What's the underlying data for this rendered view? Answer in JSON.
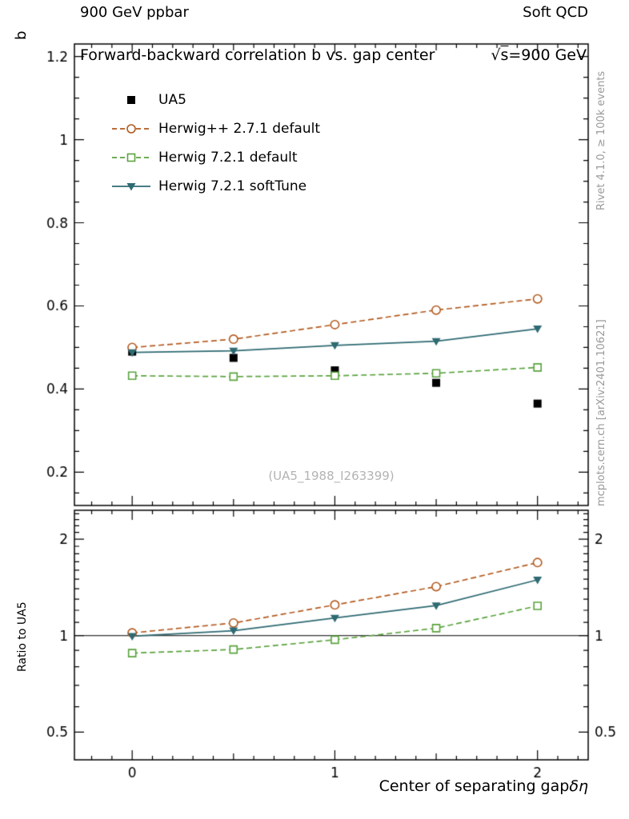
{
  "header": {
    "left": "900 GeV ppbar",
    "right": "Soft QCD"
  },
  "title": {
    "text": "Forward-backward correlation b  vs. gap center",
    "sqrt": "√",
    "s": "s",
    "energy": "=900 GeV"
  },
  "watermark": "(UA5_1988_I263399)",
  "side_texts": {
    "rivet": "Rivet 4.1.0, ≥ 100k events",
    "mcplots": "mcplots.cern.ch [arXiv:2401.10621]"
  },
  "axes": {
    "y_main_label": "b",
    "y_ratio_label": "Ratio to UA5",
    "x_label": "Center of separating gap",
    "x_label_symbol": "δη"
  },
  "chart_data": {
    "type": "line",
    "x": [
      0,
      0.5,
      1,
      1.5,
      2
    ],
    "xlim": [
      -0.285,
      2.25
    ],
    "xticks": [
      0,
      1,
      2
    ],
    "main_panel": {
      "ylabel": "b",
      "ylim": [
        0.12,
        1.23
      ],
      "yticks": [
        0.2,
        0.4,
        0.6,
        0.8,
        1,
        1.2
      ],
      "scale": "linear"
    },
    "ratio_panel": {
      "ylabel": "Ratio to UA5",
      "ylim": [
        0.41,
        2.46
      ],
      "yticks": [
        0.5,
        1,
        2
      ],
      "scale": "log",
      "reference_line": 1
    },
    "legend_position": "top-left",
    "series": [
      {
        "name": "UA5",
        "color": "#000000",
        "line": "none",
        "marker": "square-filled",
        "values": [
          0.49,
          0.475,
          0.445,
          0.415,
          0.365
        ],
        "ratio": null
      },
      {
        "name": "Herwig++ 2.7.1 default",
        "color": "#b35a1f",
        "line": "dashed",
        "marker": "circle-open",
        "values": [
          0.5,
          0.52,
          0.555,
          0.59,
          0.617
        ],
        "ratio": [
          1.02,
          1.095,
          1.247,
          1.422,
          1.69
        ]
      },
      {
        "name": "Herwig 7.2.1 default",
        "color": "#5aa33e",
        "line": "dashed",
        "marker": "square-open",
        "values": [
          0.432,
          0.43,
          0.432,
          0.438,
          0.452
        ],
        "ratio": [
          0.882,
          0.905,
          0.971,
          1.055,
          1.238
        ]
      },
      {
        "name": "Herwig 7.2.1 softTune",
        "color": "#2e6a72",
        "line": "solid",
        "marker": "triangle-down-filled",
        "values": [
          0.488,
          0.492,
          0.505,
          0.515,
          0.545
        ],
        "ratio": [
          0.996,
          1.036,
          1.135,
          1.241,
          1.493
        ]
      }
    ]
  }
}
